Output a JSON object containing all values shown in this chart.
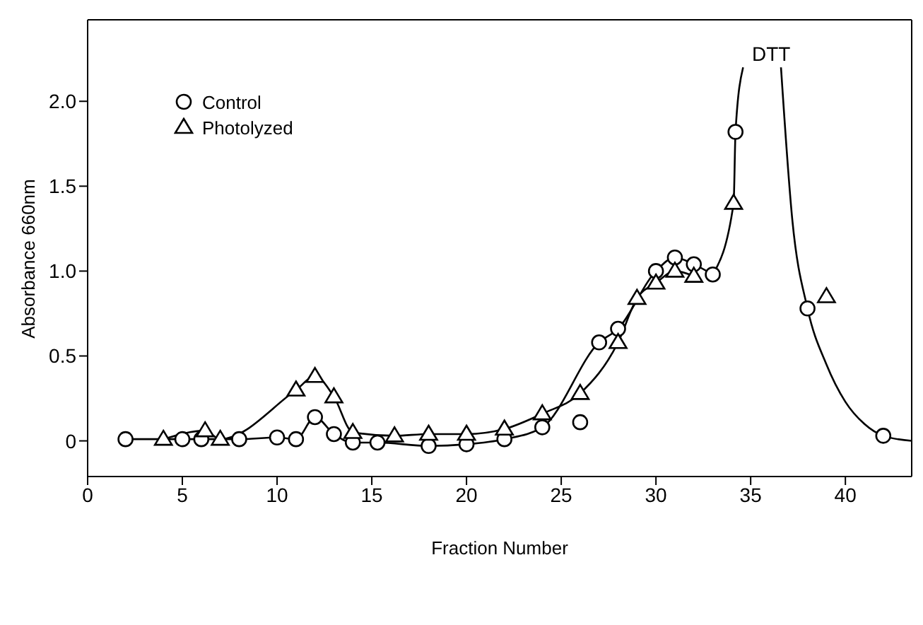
{
  "chart_data": {
    "type": "line",
    "xlabel": "Fraction Number",
    "ylabel": "Absorbance 660nm",
    "xlim": [
      0,
      43.5
    ],
    "xticks": [
      0,
      5,
      10,
      15,
      20,
      25,
      30,
      35,
      40
    ],
    "ylim": [
      -0.21,
      2.48
    ],
    "yticks": [
      0,
      {
        "value": 0.5,
        "label": "0.5"
      },
      {
        "value": 1,
        "label": "1.0"
      },
      {
        "value": 1.5,
        "label": "1.5"
      },
      {
        "value": 2,
        "label": "2.0"
      }
    ],
    "legend": "top left",
    "grid": false,
    "line_style": "solid",
    "annotations": [
      "DTT"
    ],
    "series": [
      {
        "name": "Control",
        "color": "#000000",
        "marker": "circle",
        "x": [
          2,
          5,
          6,
          8,
          10,
          11,
          12,
          13,
          14,
          15.3,
          18,
          20,
          22,
          24,
          27,
          28,
          30,
          31,
          32,
          33
        ],
        "values": [
          0.01,
          0.01,
          0.01,
          0.01,
          0.02,
          0.01,
          0.14,
          0.04,
          -0.01,
          -0.01,
          -0.03,
          -0.02,
          0.01,
          0.08,
          0.58,
          0.66,
          1.0,
          1.08,
          1.04,
          0.98
        ]
      },
      {
        "name": "Photolyzed",
        "color": "#000000",
        "marker": "triangle",
        "x": [
          4,
          6.2,
          7,
          11,
          12,
          13,
          14,
          16.2,
          18,
          20,
          22,
          24,
          26,
          28,
          29,
          30,
          31,
          32
        ],
        "values": [
          0.01,
          0.06,
          0.01,
          0.3,
          0.38,
          0.26,
          0.05,
          0.03,
          0.04,
          0.04,
          0.07,
          0.16,
          0.28,
          0.58,
          0.84,
          0.93,
          1.0,
          0.97
        ]
      },
      {
        "type": "scatter",
        "color": "#000000",
        "marker": "circle",
        "x": [
          26,
          34.2,
          38,
          42
        ],
        "values": [
          0.11,
          1.82,
          0.78,
          0.03
        ]
      },
      {
        "type": "scatter",
        "color": "#000000",
        "marker": "triangle",
        "x": [
          34.1,
          39
        ],
        "values": [
          1.4,
          0.85
        ]
      },
      {
        "color": "#000000",
        "marker": "none",
        "x": [
          33,
          34.1,
          34.2,
          34.6
        ],
        "values": [
          0.98,
          1.4,
          1.82,
          2.2
        ]
      },
      {
        "color": "#000000",
        "marker": "none",
        "x": [
          36.6,
          37.2,
          38,
          39,
          40,
          41,
          42,
          43.5
        ],
        "values": [
          2.2,
          1.3,
          0.78,
          0.45,
          0.23,
          0.1,
          0.03,
          0.0
        ]
      }
    ]
  }
}
